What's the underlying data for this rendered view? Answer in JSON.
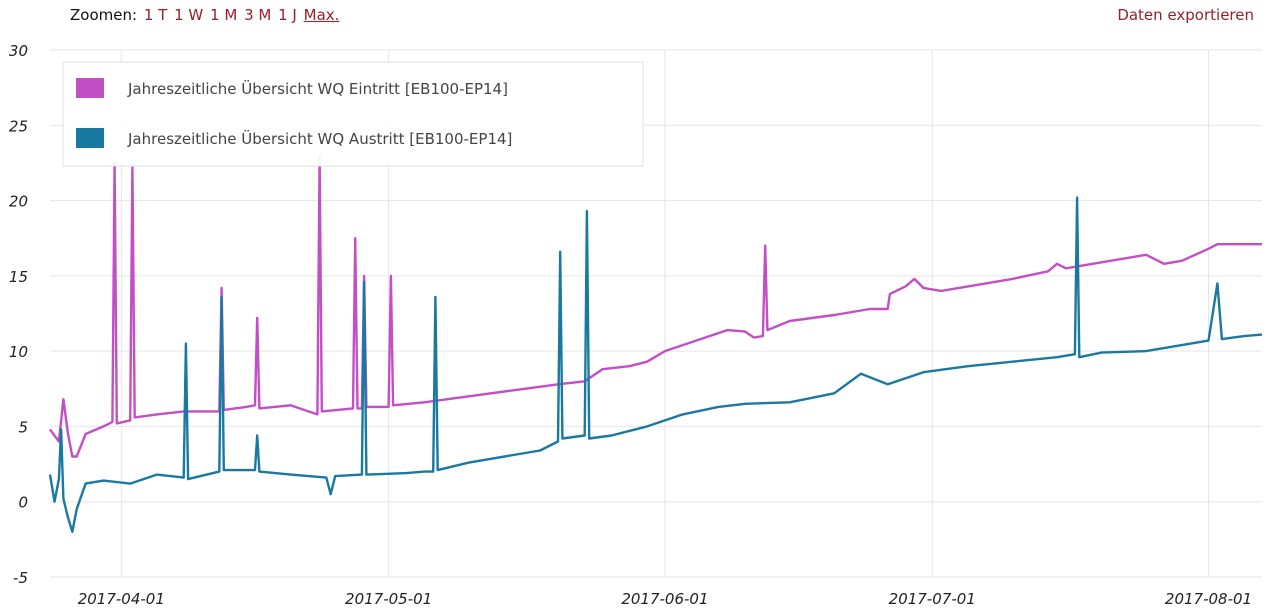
{
  "toolbar": {
    "zoom_label": "Zoomen:",
    "zoom_options": [
      "1 T",
      "1 W",
      "1 M",
      "3 M",
      "1 J",
      "Max."
    ],
    "active_zoom": "Max.",
    "export_label": "Daten exportieren"
  },
  "chart_data": {
    "type": "line",
    "ylim": [
      -5,
      30
    ],
    "yticks": [
      -5,
      0,
      5,
      10,
      15,
      20,
      25,
      30
    ],
    "xlim": [
      "2017-03-24",
      "2017-08-07"
    ],
    "xticks": [
      "2017-04-01",
      "2017-05-01",
      "2017-06-01",
      "2017-07-01",
      "2017-08-01"
    ],
    "grid": true,
    "legend_position": "top-left",
    "series": [
      {
        "name": "Jahreszeitliche Übersicht WQ Eintritt [EB100-EP14]",
        "color": "#c34fc6",
        "points": [
          [
            "2017-03-24",
            4.8
          ],
          [
            "2017-03-25",
            4.0
          ],
          [
            "2017-03-25 12:00",
            6.8
          ],
          [
            "2017-03-26",
            4.6
          ],
          [
            "2017-03-26 12:00",
            3.0
          ],
          [
            "2017-03-27",
            3.0
          ],
          [
            "2017-03-28",
            4.5
          ],
          [
            "2017-03-30",
            5.0
          ],
          [
            "2017-03-31",
            5.3
          ],
          [
            "2017-03-31 06:00",
            22.5
          ],
          [
            "2017-03-31 12:00",
            5.2
          ],
          [
            "2017-04-02",
            5.4
          ],
          [
            "2017-04-02 06:00",
            22.2
          ],
          [
            "2017-04-02 12:00",
            5.6
          ],
          [
            "2017-04-05",
            5.8
          ],
          [
            "2017-04-08",
            6.0
          ],
          [
            "2017-04-12",
            6.0
          ],
          [
            "2017-04-12 06:00",
            14.2
          ],
          [
            "2017-04-12 12:00",
            6.1
          ],
          [
            "2017-04-15",
            6.3
          ],
          [
            "2017-04-16",
            6.4
          ],
          [
            "2017-04-16 06:00",
            12.2
          ],
          [
            "2017-04-16 12:00",
            6.2
          ],
          [
            "2017-04-20",
            6.4
          ],
          [
            "2017-04-22",
            6.0
          ],
          [
            "2017-04-23",
            5.8
          ],
          [
            "2017-04-23 06:00",
            23.0
          ],
          [
            "2017-04-23 12:00",
            6.0
          ],
          [
            "2017-04-27",
            6.2
          ],
          [
            "2017-04-27 06:00",
            17.5
          ],
          [
            "2017-04-27 12:00",
            6.2
          ],
          [
            "2017-04-28",
            6.2
          ],
          [
            "2017-04-28 06:00",
            15.0
          ],
          [
            "2017-04-28 12:00",
            6.3
          ],
          [
            "2017-05-01",
            6.3
          ],
          [
            "2017-05-01 06:00",
            15.0
          ],
          [
            "2017-05-01 12:00",
            6.4
          ],
          [
            "2017-05-05",
            6.6
          ],
          [
            "2017-05-10",
            7.0
          ],
          [
            "2017-05-15",
            7.4
          ],
          [
            "2017-05-20",
            7.8
          ],
          [
            "2017-05-23",
            8.0
          ],
          [
            "2017-05-25",
            8.8
          ],
          [
            "2017-05-28",
            9.0
          ],
          [
            "2017-05-30",
            9.3
          ],
          [
            "2017-06-01",
            10.0
          ],
          [
            "2017-06-05",
            10.8
          ],
          [
            "2017-06-08",
            11.4
          ],
          [
            "2017-06-10",
            11.3
          ],
          [
            "2017-06-11",
            10.9
          ],
          [
            "2017-06-12",
            11.0
          ],
          [
            "2017-06-12 06:00",
            17.0
          ],
          [
            "2017-06-12 12:00",
            11.4
          ],
          [
            "2017-06-15",
            12.0
          ],
          [
            "2017-06-20",
            12.4
          ],
          [
            "2017-06-24",
            12.8
          ],
          [
            "2017-06-26",
            12.8
          ],
          [
            "2017-06-26 06:00",
            13.8
          ],
          [
            "2017-06-28",
            14.3
          ],
          [
            "2017-06-29",
            14.8
          ],
          [
            "2017-06-30",
            14.2
          ],
          [
            "2017-07-02",
            14.0
          ],
          [
            "2017-07-05",
            14.3
          ],
          [
            "2017-07-10",
            14.8
          ],
          [
            "2017-07-14",
            15.3
          ],
          [
            "2017-07-15",
            15.8
          ],
          [
            "2017-07-16",
            15.5
          ],
          [
            "2017-07-20",
            15.9
          ],
          [
            "2017-07-25",
            16.4
          ],
          [
            "2017-07-27",
            15.8
          ],
          [
            "2017-07-29",
            16.0
          ],
          [
            "2017-08-01",
            16.8
          ],
          [
            "2017-08-02",
            17.1
          ],
          [
            "2017-08-07",
            17.1
          ]
        ]
      },
      {
        "name": "Jahreszeitliche Übersicht WQ Austritt [EB100-EP14]",
        "color": "#1a79a0",
        "points": [
          [
            "2017-03-24",
            1.8
          ],
          [
            "2017-03-24 12:00",
            0.0
          ],
          [
            "2017-03-25",
            1.5
          ],
          [
            "2017-03-25 06:00",
            4.8
          ],
          [
            "2017-03-25 12:00",
            0.2
          ],
          [
            "2017-03-26",
            -1.0
          ],
          [
            "2017-03-26 12:00",
            -2.0
          ],
          [
            "2017-03-27",
            -0.5
          ],
          [
            "2017-03-28",
            1.2
          ],
          [
            "2017-03-30",
            1.4
          ],
          [
            "2017-04-02",
            1.2
          ],
          [
            "2017-04-05",
            1.8
          ],
          [
            "2017-04-08",
            1.6
          ],
          [
            "2017-04-08 06:00",
            10.5
          ],
          [
            "2017-04-08 12:00",
            1.5
          ],
          [
            "2017-04-12",
            2.0
          ],
          [
            "2017-04-12 06:00",
            13.6
          ],
          [
            "2017-04-12 12:00",
            2.1
          ],
          [
            "2017-04-16",
            2.1
          ],
          [
            "2017-04-16 06:00",
            4.4
          ],
          [
            "2017-04-16 12:00",
            2.0
          ],
          [
            "2017-04-20",
            1.8
          ],
          [
            "2017-04-24",
            1.6
          ],
          [
            "2017-04-24 12:00",
            0.5
          ],
          [
            "2017-04-25",
            1.7
          ],
          [
            "2017-04-28",
            1.8
          ],
          [
            "2017-04-28 06:00",
            14.6
          ],
          [
            "2017-04-28 12:00",
            1.8
          ],
          [
            "2017-05-03",
            1.9
          ],
          [
            "2017-05-05",
            2.0
          ],
          [
            "2017-05-06",
            2.0
          ],
          [
            "2017-05-06 06:00",
            13.6
          ],
          [
            "2017-05-06 12:00",
            2.1
          ],
          [
            "2017-05-10",
            2.6
          ],
          [
            "2017-05-15",
            3.1
          ],
          [
            "2017-05-18",
            3.4
          ],
          [
            "2017-05-20",
            4.0
          ],
          [
            "2017-05-20 06:00",
            16.6
          ],
          [
            "2017-05-20 12:00",
            4.2
          ],
          [
            "2017-05-23",
            4.4
          ],
          [
            "2017-05-23 06:00",
            19.3
          ],
          [
            "2017-05-23 12:00",
            4.2
          ],
          [
            "2017-05-26",
            4.4
          ],
          [
            "2017-05-30",
            5.0
          ],
          [
            "2017-06-03",
            5.8
          ],
          [
            "2017-06-07",
            6.3
          ],
          [
            "2017-06-10",
            6.5
          ],
          [
            "2017-06-15",
            6.6
          ],
          [
            "2017-06-20",
            7.2
          ],
          [
            "2017-06-23",
            8.5
          ],
          [
            "2017-06-26",
            7.8
          ],
          [
            "2017-06-30",
            8.6
          ],
          [
            "2017-07-05",
            9.0
          ],
          [
            "2017-07-10",
            9.3
          ],
          [
            "2017-07-15",
            9.6
          ],
          [
            "2017-07-17",
            9.8
          ],
          [
            "2017-07-17 06:00",
            20.2
          ],
          [
            "2017-07-17 12:00",
            9.6
          ],
          [
            "2017-07-20",
            9.9
          ],
          [
            "2017-07-25",
            10.0
          ],
          [
            "2017-07-28",
            10.3
          ],
          [
            "2017-08-01",
            10.7
          ],
          [
            "2017-08-02",
            14.5
          ],
          [
            "2017-08-02 12:00",
            10.8
          ],
          [
            "2017-08-05",
            11.0
          ],
          [
            "2017-08-07",
            11.1
          ]
        ]
      }
    ]
  }
}
